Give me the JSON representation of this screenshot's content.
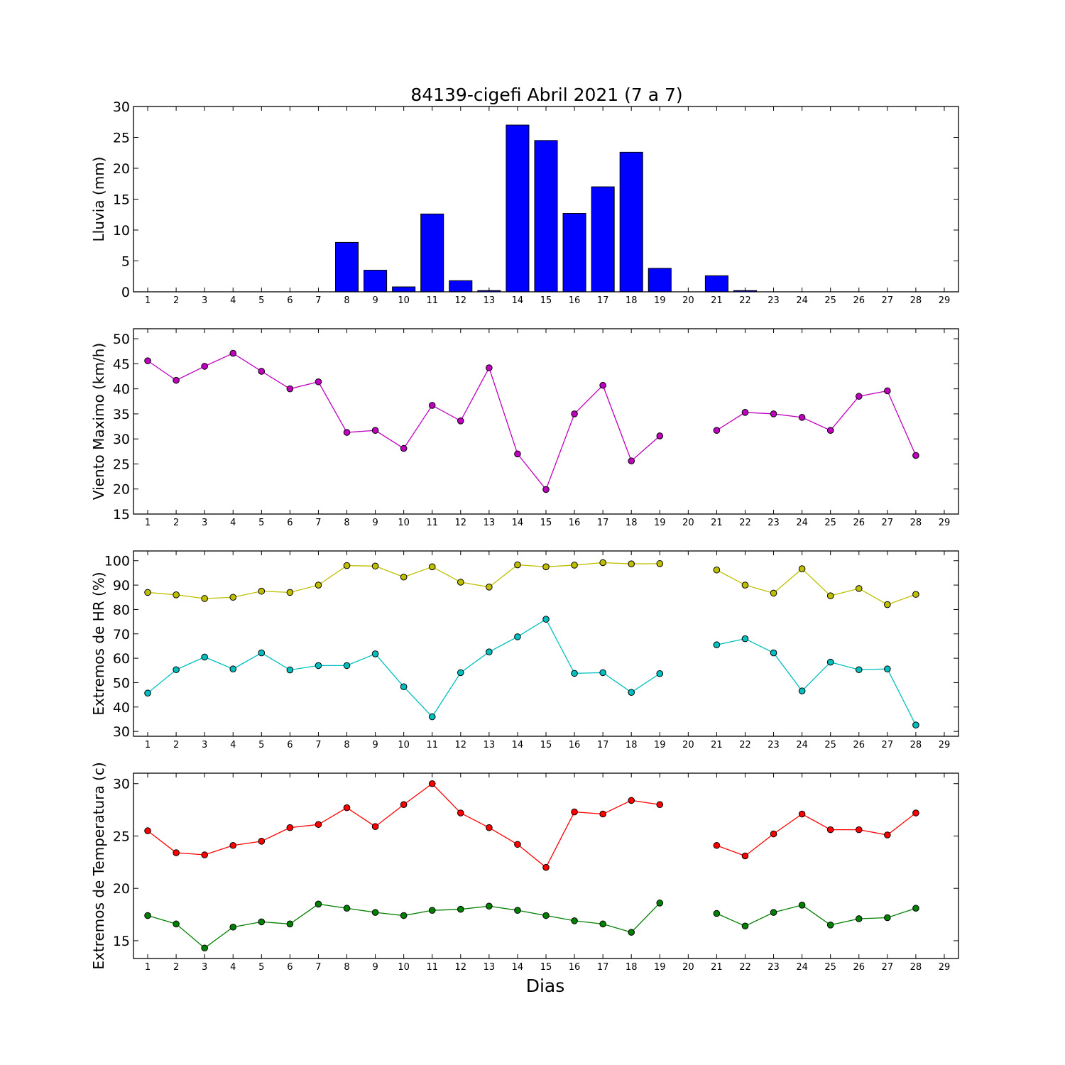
{
  "title": "84139-cigefi Abril 2021  (7 a 7)",
  "xlabel": "Dias",
  "x_ticks": [
    "1",
    "2",
    "3",
    "4",
    "5",
    "6",
    "7",
    "8",
    "9",
    "10",
    "11",
    "12",
    "13",
    "14",
    "15",
    "16",
    "17",
    "18",
    "19",
    "20",
    "21",
    "22",
    "23",
    "24",
    "25",
    "26",
    "27",
    "28",
    "29"
  ],
  "colors": {
    "rain": "#0000ff",
    "wind": "#bf00bf",
    "hr_max": "#bfbf00",
    "hr_min": "#00bfbf",
    "temp_max": "#ff0000",
    "temp_min": "#008000"
  },
  "chart_data": [
    {
      "type": "bar",
      "ylabel": "Lluvia (mm)",
      "xlim": [
        0.5,
        29.5
      ],
      "ylim": [
        0,
        30
      ],
      "yticks": [
        0,
        5,
        10,
        15,
        20,
        25,
        30
      ],
      "x": [
        1,
        2,
        3,
        4,
        5,
        6,
        7,
        8,
        9,
        10,
        11,
        12,
        13,
        14,
        15,
        16,
        17,
        18,
        19,
        20,
        21,
        22,
        23,
        24,
        25,
        26,
        27,
        28
      ],
      "values": [
        0,
        0,
        0,
        0,
        0,
        0,
        0,
        8.0,
        3.5,
        0.8,
        12.6,
        1.8,
        0.2,
        27.0,
        24.5,
        12.7,
        17.0,
        22.6,
        3.8,
        0,
        2.6,
        0.2,
        0,
        0,
        0,
        0,
        0,
        0
      ]
    },
    {
      "type": "line",
      "ylabel": "Viento Maximo (km/h)",
      "xlim": [
        0.5,
        29.5
      ],
      "ylim": [
        15,
        52
      ],
      "yticks": [
        15,
        20,
        25,
        30,
        35,
        40,
        45,
        50
      ],
      "x": [
        1,
        2,
        3,
        4,
        5,
        6,
        7,
        8,
        9,
        10,
        11,
        12,
        13,
        14,
        15,
        16,
        17,
        18,
        19,
        20,
        21,
        22,
        23,
        24,
        25,
        26,
        27,
        28
      ],
      "series": [
        {
          "values": [
            45.6,
            41.7,
            44.5,
            47.1,
            43.5,
            40.0,
            41.4,
            31.3,
            31.7,
            28.1,
            36.7,
            33.6,
            44.2,
            27.0,
            19.9,
            35.0,
            40.7,
            25.6,
            30.6,
            null,
            31.7,
            35.3,
            35.0,
            34.3,
            31.7,
            38.5,
            39.6,
            26.7
          ]
        }
      ]
    },
    {
      "type": "line",
      "ylabel": "Extremos de HR (%)",
      "xlim": [
        0.5,
        29.5
      ],
      "ylim": [
        28,
        104
      ],
      "yticks": [
        30,
        40,
        50,
        60,
        70,
        80,
        90,
        100
      ],
      "x": [
        1,
        2,
        3,
        4,
        5,
        6,
        7,
        8,
        9,
        10,
        11,
        12,
        13,
        14,
        15,
        16,
        17,
        18,
        19,
        20,
        21,
        22,
        23,
        24,
        25,
        26,
        27,
        28
      ],
      "series": [
        {
          "values": [
            87.0,
            86.0,
            84.5,
            85.0,
            87.5,
            87.0,
            90.0,
            98.0,
            97.8,
            93.3,
            97.5,
            91.2,
            89.2,
            98.3,
            97.5,
            98.2,
            99.2,
            98.7,
            98.8,
            null,
            96.2,
            90.0,
            86.7,
            96.7,
            85.6,
            88.6,
            82.0,
            86.2
          ]
        },
        {
          "values": [
            45.7,
            55.3,
            60.5,
            55.6,
            62.2,
            55.2,
            57.0,
            57.0,
            61.8,
            48.3,
            36.0,
            54.1,
            62.6,
            68.8,
            76.0,
            53.8,
            54.1,
            46.0,
            53.7,
            null,
            65.5,
            68.0,
            62.2,
            46.6,
            58.4,
            55.3,
            55.6,
            32.6
          ]
        }
      ]
    },
    {
      "type": "line",
      "ylabel": "Extremos de Temperatura (c)",
      "xlim": [
        0.5,
        29.5
      ],
      "ylim": [
        13.3,
        31.0
      ],
      "yticks": [
        15,
        20,
        25,
        30
      ],
      "x": [
        1,
        2,
        3,
        4,
        5,
        6,
        7,
        8,
        9,
        10,
        11,
        12,
        13,
        14,
        15,
        16,
        17,
        18,
        19,
        20,
        21,
        22,
        23,
        24,
        25,
        26,
        27,
        28
      ],
      "series": [
        {
          "values": [
            25.5,
            23.4,
            23.2,
            24.1,
            24.5,
            25.8,
            26.1,
            27.7,
            25.9,
            28.0,
            30.0,
            27.2,
            25.8,
            24.2,
            22.0,
            27.3,
            27.1,
            28.4,
            28.0,
            null,
            24.1,
            23.1,
            25.2,
            27.1,
            25.6,
            25.6,
            25.1,
            27.2
          ]
        },
        {
          "values": [
            17.4,
            16.6,
            14.3,
            16.3,
            16.8,
            16.6,
            18.5,
            18.1,
            17.7,
            17.4,
            17.9,
            18.0,
            18.3,
            17.9,
            17.4,
            16.9,
            16.6,
            15.8,
            18.6,
            null,
            17.6,
            16.4,
            17.7,
            18.4,
            16.5,
            17.1,
            17.2,
            18.1
          ]
        }
      ]
    }
  ]
}
